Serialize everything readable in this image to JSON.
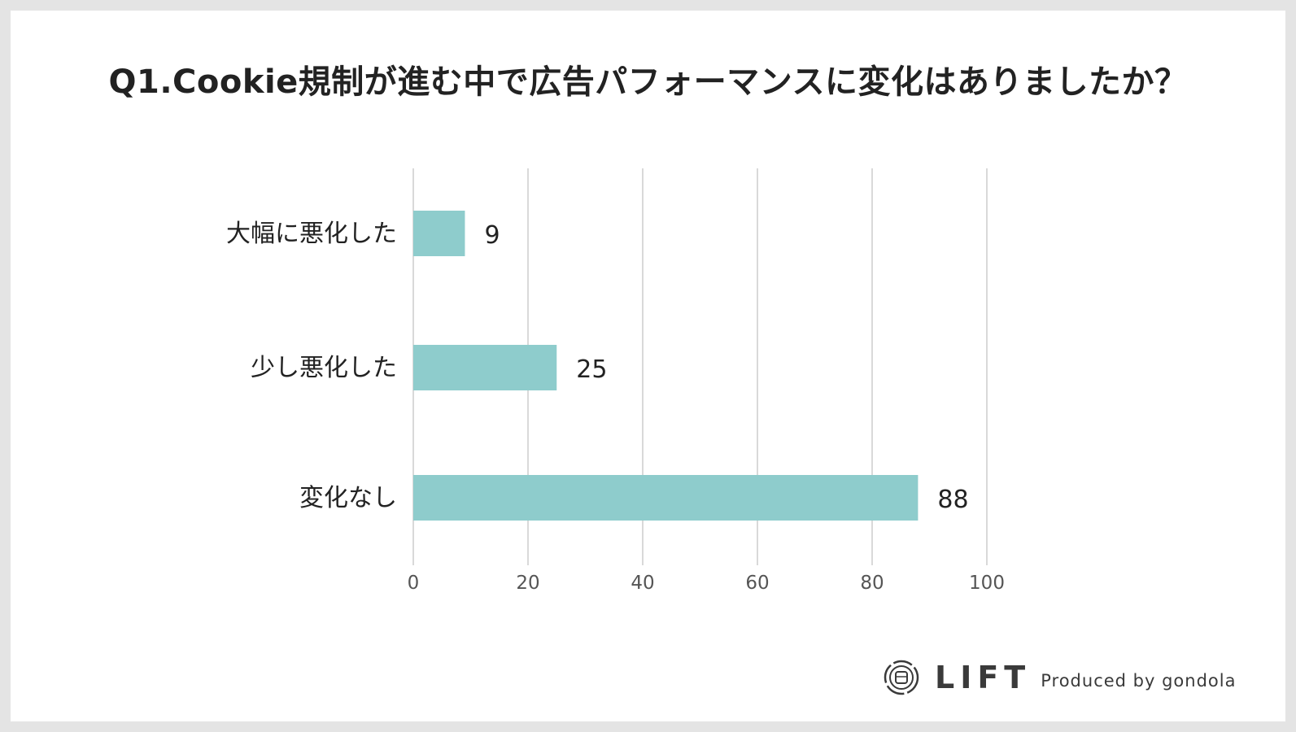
{
  "chart_data": {
    "type": "bar",
    "orientation": "horizontal",
    "title": "Q1.Cookie規制が進む中で広告パフォーマンスに変化はありましたか？",
    "categories": [
      "大幅に悪化した",
      "少し悪化した",
      "変化なし"
    ],
    "values": [
      9,
      25,
      88
    ],
    "xlim": [
      0,
      100
    ],
    "xticks": [
      0,
      20,
      40,
      60,
      80,
      100
    ],
    "grid": "vertical",
    "legend": "none",
    "bar_color": "#8ecccc"
  },
  "footer": {
    "logo_icon": "gondola-icon",
    "brand": "LIFT",
    "produced_by": "Produced by gondola"
  }
}
